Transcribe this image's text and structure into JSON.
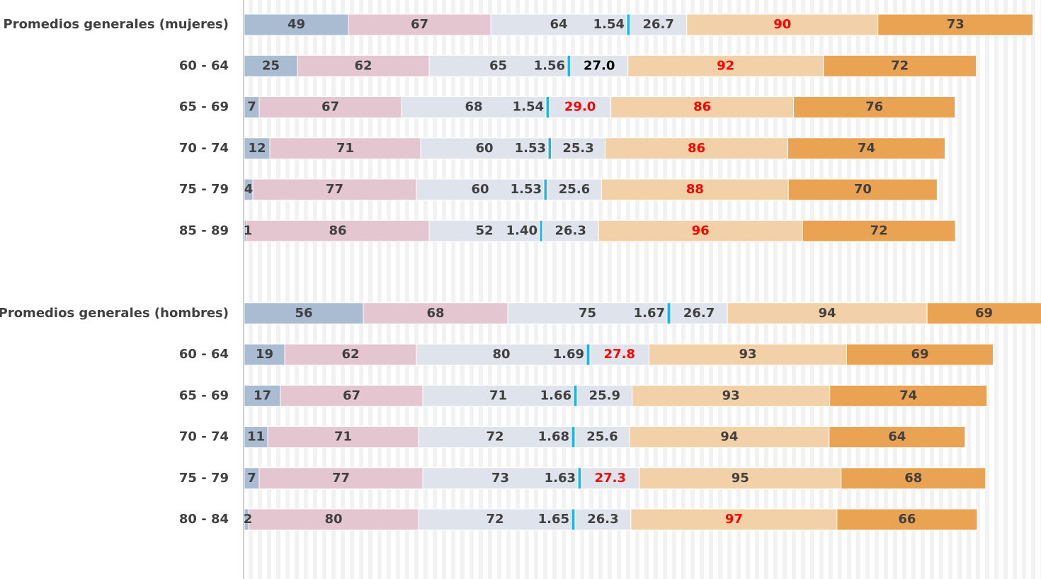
{
  "chart_data": {
    "type": "stacked-barh",
    "categories": [
      "Promedios generales (mujeres)",
      "60 - 64",
      "65 - 69",
      "70 - 74",
      "75 - 79",
      "85 - 89",
      null,
      "Promedios generales (hombres)",
      "60 - 64",
      "65 - 69",
      "70 - 74",
      "75 - 79",
      "80 - 84"
    ],
    "xlim": [
      0,
      375
    ],
    "series": [
      {
        "color": "#a9bcd1",
        "values": [
          49,
          25,
          7,
          12,
          4,
          1,
          null,
          56,
          19,
          17,
          11,
          7,
          2
        ]
      },
      {
        "color": "#e4c6d1",
        "values": [
          67,
          62,
          67,
          71,
          77,
          86,
          null,
          68,
          62,
          67,
          71,
          77,
          80
        ]
      },
      {
        "color": "#dfe4ec",
        "values": [
          64,
          65,
          68,
          60,
          60,
          52,
          null,
          75,
          80,
          71,
          72,
          73,
          72
        ]
      },
      {
        "color": "#1ab6e6",
        "values": [
          1.54,
          1.56,
          1.54,
          1.53,
          1.53,
          1.4,
          null,
          1.67,
          1.69,
          1.66,
          1.68,
          1.63,
          1.65
        ],
        "value_labels": [
          "1.54",
          "1.56",
          "1.54",
          "1.53",
          "1.53",
          "1.40",
          null,
          "1.67",
          "1.69",
          "1.66",
          "1.68",
          "1.63",
          "1.65"
        ]
      },
      {
        "color": "#dfe4ec",
        "values": [
          26.7,
          27.0,
          29.0,
          25.3,
          25.6,
          26.3,
          null,
          26.7,
          27.8,
          25.9,
          25.6,
          27.3,
          26.3
        ],
        "value_labels": [
          "26.7",
          "27.0",
          "29.0",
          "25.3",
          "25.6",
          "26.3",
          null,
          "26.7",
          "27.8",
          "25.9",
          "25.6",
          "27.3",
          "26.3"
        ],
        "label_colors": [
          "#404040",
          "#000000",
          "#ff0000",
          "#404040",
          "#404040",
          "#404040",
          null,
          "#404040",
          "#ff0000",
          "#404040",
          "#404040",
          "#ff0000",
          "#404040"
        ]
      },
      {
        "color": "#f3d1a8",
        "values": [
          90,
          92,
          86,
          86,
          88,
          96,
          null,
          94,
          93,
          93,
          94,
          95,
          97
        ],
        "label_colors": [
          "#ff0000",
          "#ff0000",
          "#ff0000",
          "#ff0000",
          "#ff0000",
          "#ff0000",
          null,
          "#404040",
          "#404040",
          "#404040",
          "#404040",
          "#404040",
          "#ff0000"
        ]
      },
      {
        "color": "#eaa352",
        "values": [
          73,
          72,
          76,
          74,
          70,
          72,
          null,
          69,
          69,
          74,
          64,
          68,
          66
        ]
      }
    ]
  }
}
